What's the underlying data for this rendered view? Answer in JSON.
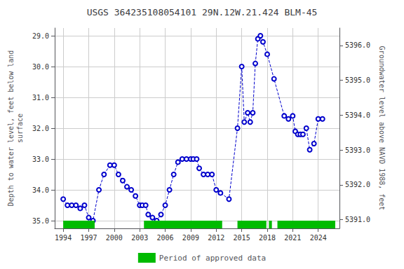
{
  "chart_data": {
    "type": "line",
    "title": "USGS 364235108054101 29N.12W.21.424 BLM-45",
    "ylabel": "Depth to water level, feet below land\nsurface",
    "y2label": "Groundwater level above NAVD 1988, feet",
    "xlim": [
      1993.0,
      2026.5
    ],
    "xticks": [
      1994,
      1997,
      2000,
      2003,
      2006,
      2009,
      2012,
      2015,
      2018,
      2021,
      2024
    ],
    "ylim": [
      35.25,
      28.75
    ],
    "yticks": [
      {
        "value": 29.0,
        "label": "29.0"
      },
      {
        "value": 30.0,
        "label": "30.0"
      },
      {
        "value": 31.0,
        "label": "31.0"
      },
      {
        "value": 32.0,
        "label": "32.0"
      },
      {
        "value": 33.0,
        "label": "33.0"
      },
      {
        "value": 34.0,
        "label": "34.0"
      },
      {
        "value": 35.0,
        "label": "35.0"
      }
    ],
    "y2lim": [
      5390.75,
      5396.5
    ],
    "y2ticks": [
      {
        "value": 5391.0,
        "label": "5391.0"
      },
      {
        "value": 5392.0,
        "label": "5392.0"
      },
      {
        "value": 5393.0,
        "label": "5393.0"
      },
      {
        "value": 5394.0,
        "label": "5394.0"
      },
      {
        "value": 5395.0,
        "label": "5395.0"
      },
      {
        "value": 5396.0,
        "label": "5396.0"
      }
    ],
    "grid": true,
    "legend": "bottom",
    "x": [
      1994.0,
      1994.5,
      1995.0,
      1995.5,
      1996.0,
      1996.5,
      1997.0,
      1997.5,
      1998.2,
      1998.8,
      1999.5,
      2000.0,
      2000.5,
      2001.0,
      2001.5,
      2002.0,
      2002.5,
      2003.0,
      2003.3,
      2003.7,
      2004.0,
      2004.5,
      2005.0,
      2005.5,
      2006.0,
      2006.5,
      2007.0,
      2007.5,
      2008.0,
      2008.5,
      2009.0,
      2009.3,
      2009.7,
      2010.0,
      2010.5,
      2011.0,
      2011.5,
      2012.0,
      2012.5,
      2013.5,
      2014.5,
      2015.0,
      2015.3,
      2015.7,
      2016.0,
      2016.3,
      2016.6,
      2016.9,
      2017.2,
      2017.5,
      2018.0,
      2018.8,
      2020.0,
      2020.5,
      2021.0,
      2021.3,
      2021.6,
      2021.9,
      2022.2,
      2022.6,
      2023.0,
      2023.5,
      2024.0,
      2024.5
    ],
    "series": [
      {
        "type": "line",
        "color": "#0000cc",
        "marker": "circle",
        "line_style": "dashed",
        "values": [
          34.3,
          34.5,
          34.5,
          34.5,
          34.6,
          34.5,
          34.9,
          35.0,
          34.0,
          33.5,
          33.2,
          33.2,
          33.5,
          33.7,
          33.9,
          34.0,
          34.2,
          34.5,
          34.5,
          34.5,
          34.8,
          34.9,
          35.0,
          34.8,
          34.5,
          34.0,
          33.5,
          33.1,
          33.0,
          33.0,
          33.0,
          33.0,
          33.0,
          33.3,
          33.5,
          33.5,
          33.5,
          34.0,
          34.1,
          34.3,
          32.0,
          30.0,
          31.8,
          31.5,
          31.8,
          31.5,
          29.9,
          29.1,
          29.0,
          29.2,
          29.6,
          30.4,
          31.6,
          31.7,
          31.6,
          32.1,
          32.2,
          32.2,
          32.2,
          32.0,
          32.7,
          32.5,
          31.7,
          31.7
        ]
      },
      {
        "type": "span",
        "name": "Period of approved data",
        "color": "#00bb00",
        "ranges": [
          [
            1994.0,
            1997.7
          ],
          [
            2003.5,
            2012.7
          ],
          [
            2014.5,
            2017.9
          ],
          [
            2018.2,
            2018.55
          ],
          [
            2019.2,
            2026.0
          ]
        ],
        "y_range": [
          35.0,
          35.25
        ]
      }
    ]
  }
}
